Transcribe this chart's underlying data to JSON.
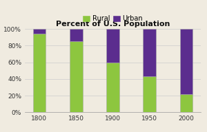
{
  "title": "Percent of U.S. Population",
  "categories": [
    "1800",
    "1850",
    "1900",
    "1950",
    "2000"
  ],
  "rural": [
    94,
    85,
    60,
    43,
    22
  ],
  "urban": [
    6,
    15,
    40,
    57,
    78
  ],
  "rural_color": "#8dc63f",
  "urban_color": "#5b2d8e",
  "background_color": "#f0ebe0",
  "ylim": [
    0,
    100
  ],
  "yticks": [
    0,
    20,
    40,
    60,
    80,
    100
  ],
  "ytick_labels": [
    "0%",
    "20%",
    "40%",
    "60%",
    "80%",
    "100%"
  ],
  "legend_rural": "Rural",
  "legend_urban": "Urban",
  "bar_width": 0.35,
  "title_fontsize": 8,
  "tick_fontsize": 6.5,
  "legend_fontsize": 7
}
